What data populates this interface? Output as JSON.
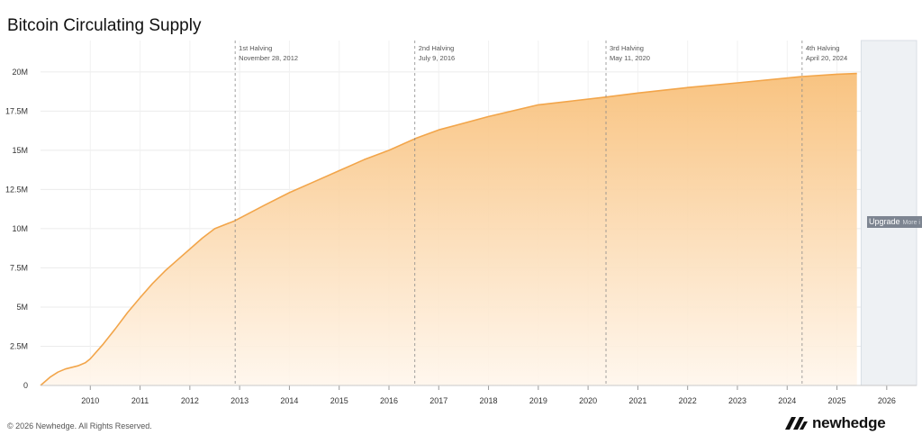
{
  "title": "Bitcoin Circulating Supply",
  "footer": {
    "copyright": "© 2026 Newhedge. All Rights Reserved.",
    "brand": "newhedge"
  },
  "upgrade": {
    "label": "Upgrade",
    "more": "More i"
  },
  "colors": {
    "line": "#f2a54a",
    "fill_top": "#f8c07a",
    "fill_bottom": "#fff6ec",
    "upgrade_bg": "#7d8591"
  },
  "chart_data": {
    "type": "area",
    "title": "Bitcoin Circulating Supply",
    "xlabel": "",
    "ylabel": "",
    "xlim": [
      2009.0,
      2026.6
    ],
    "ylim": [
      0,
      22000000
    ],
    "x_ticks": [
      "2010",
      "2011",
      "2012",
      "2013",
      "2014",
      "2015",
      "2016",
      "2017",
      "2018",
      "2019",
      "2020",
      "2021",
      "2022",
      "2023",
      "2024",
      "2025",
      "2026"
    ],
    "y_ticks": [
      {
        "value": 0,
        "label": "0"
      },
      {
        "value": 2500000,
        "label": "2.5M"
      },
      {
        "value": 5000000,
        "label": "5M"
      },
      {
        "value": 7500000,
        "label": "7.5M"
      },
      {
        "value": 10000000,
        "label": "10M"
      },
      {
        "value": 12500000,
        "label": "12.5M"
      },
      {
        "value": 15000000,
        "label": "15M"
      },
      {
        "value": 17500000,
        "label": "17.5M"
      },
      {
        "value": 20000000,
        "label": "20M"
      }
    ],
    "grid": true,
    "series": [
      {
        "x": [
          2009.0,
          2009.2,
          2009.35,
          2009.5,
          2009.75,
          2009.9,
          2010.0,
          2010.25,
          2010.5,
          2010.75,
          2011.0,
          2011.25,
          2011.5,
          2011.75,
          2012.0,
          2012.25,
          2012.5,
          2012.9,
          2013.5,
          2014.0,
          2014.5,
          2015.0,
          2015.5,
          2016.0,
          2016.53,
          2017.0,
          2018.0,
          2019.0,
          2020.37,
          2021.0,
          2022.0,
          2023.0,
          2024.3,
          2025.0,
          2025.4
        ],
        "y": [
          0,
          550000,
          850000,
          1050000,
          1250000,
          1450000,
          1700000,
          2600000,
          3600000,
          4650000,
          5600000,
          6500000,
          7300000,
          8000000,
          8700000,
          9400000,
          10000000,
          10500000,
          11500000,
          12300000,
          13000000,
          13700000,
          14400000,
          15000000,
          15750000,
          16300000,
          17150000,
          17900000,
          18400000,
          18650000,
          19000000,
          19300000,
          19700000,
          19850000,
          19900000
        ]
      }
    ],
    "annotations": [
      {
        "x": 2012.91,
        "label": "1st Halving",
        "date": "November 28, 2012"
      },
      {
        "x": 2016.52,
        "label": "2nd Halving",
        "date": "July 9, 2016"
      },
      {
        "x": 2020.36,
        "label": "3rd Halving",
        "date": "May 11, 2020"
      },
      {
        "x": 2024.3,
        "label": "4th Halving",
        "date": "April 20, 2024"
      }
    ],
    "restricted_from": 2025.45
  }
}
